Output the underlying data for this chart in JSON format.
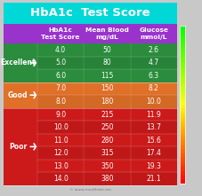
{
  "title": "HbA1c  Test Score",
  "title_bg": "#00d8d8",
  "title_color": "white",
  "header_bg": "#9933cc",
  "header_color": "white",
  "headers": [
    "HbA1c\nTest Score",
    "Mean Blood\nmg/dL",
    "Glucose\nmmol/L"
  ],
  "categories": [
    {
      "label": "Excellent",
      "color": "#2a8c3c",
      "rows": [
        [
          "4.0",
          "50",
          "2.6"
        ],
        [
          "5.0",
          "80",
          "4.7"
        ],
        [
          "6.0",
          "115",
          "6.3"
        ]
      ]
    },
    {
      "label": "Good",
      "color": "#e07028",
      "rows": [
        [
          "7.0",
          "150",
          "8.2"
        ],
        [
          "8.0",
          "180",
          "10.0"
        ]
      ]
    },
    {
      "label": "Poor",
      "color": "#cc1a1a",
      "rows": [
        [
          "9.0",
          "215",
          "11.9"
        ],
        [
          "10.0",
          "250",
          "13.7"
        ],
        [
          "11.0",
          "280",
          "15.6"
        ],
        [
          "12.0",
          "315",
          "17.4"
        ],
        [
          "13.0",
          "350",
          "19.3"
        ],
        [
          "14.0",
          "380",
          "21.1"
        ]
      ]
    }
  ],
  "watermark": "© www.meditrain.me",
  "bg_color": "#c8c8c8"
}
